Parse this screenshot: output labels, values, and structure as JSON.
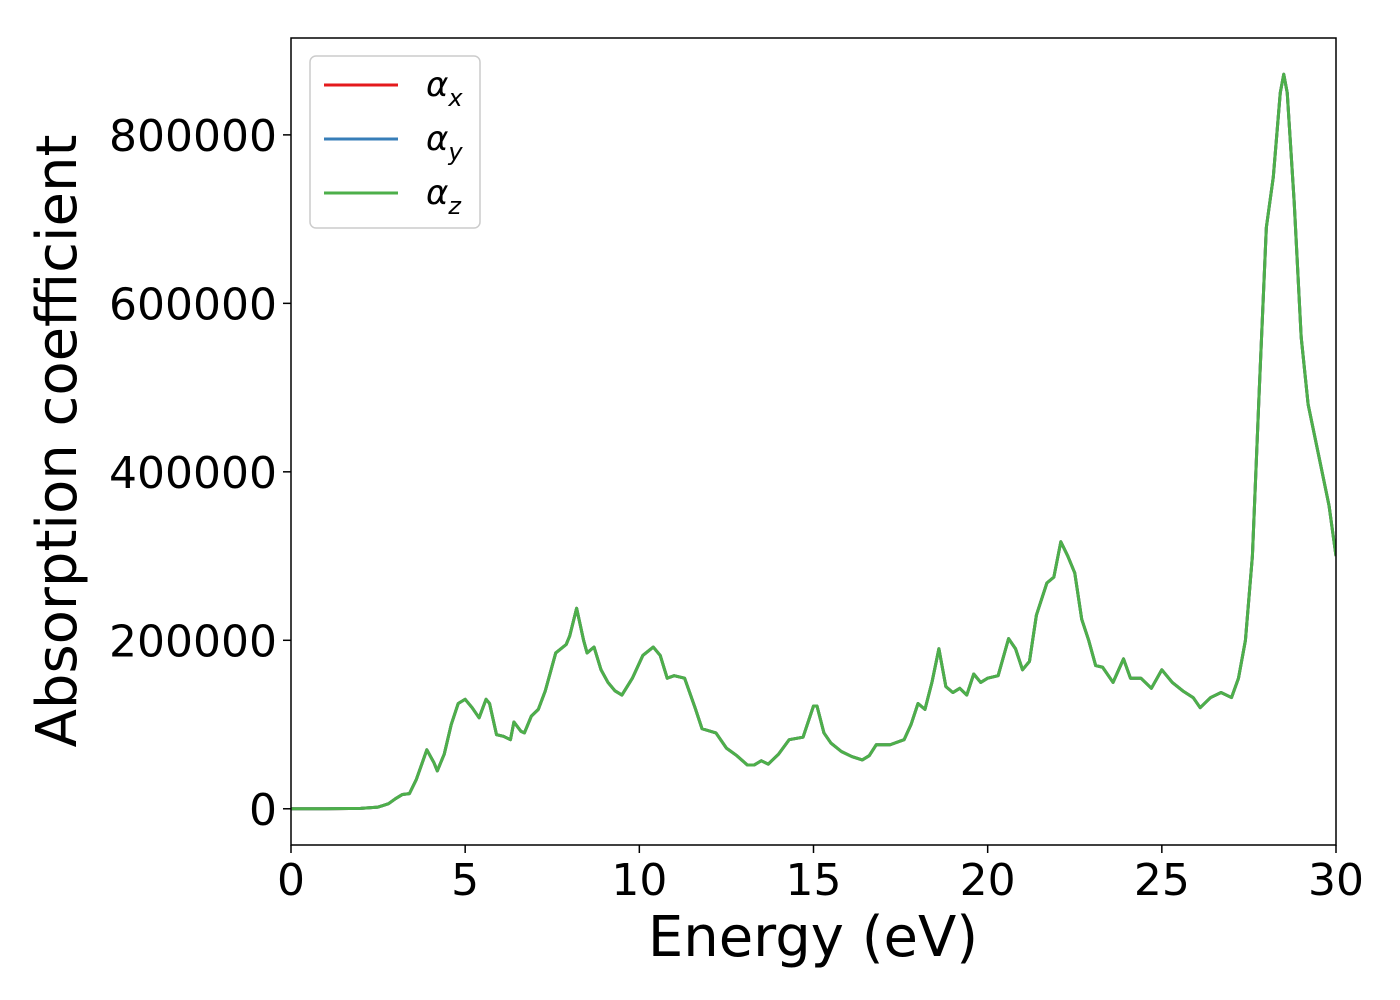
{
  "chart_data": {
    "type": "line",
    "xlabel": "Energy (eV)",
    "ylabel": "Absorption coefficient",
    "xlim": [
      0,
      30
    ],
    "xticks": [
      0,
      5,
      10,
      15,
      20,
      25,
      30
    ],
    "ylim": [
      -43000,
      915000
    ],
    "yticks": [
      0,
      200000,
      400000,
      600000,
      800000
    ],
    "grid": false,
    "legend": "upper left",
    "x": [
      0,
      1,
      2,
      2.5,
      2.8,
      3.0,
      3.2,
      3.4,
      3.6,
      3.9,
      4.1,
      4.2,
      4.4,
      4.6,
      4.8,
      5.0,
      5.2,
      5.4,
      5.6,
      5.7,
      5.9,
      6.1,
      6.3,
      6.4,
      6.6,
      6.7,
      6.9,
      7.1,
      7.3,
      7.6,
      7.9,
      8.0,
      8.2,
      8.4,
      8.5,
      8.7,
      8.9,
      9.1,
      9.3,
      9.5,
      9.8,
      10.1,
      10.4,
      10.6,
      10.8,
      11.0,
      11.3,
      11.6,
      11.8,
      12.2,
      12.5,
      12.8,
      13.1,
      13.3,
      13.5,
      13.7,
      14.0,
      14.3,
      14.7,
      15.0,
      15.1,
      15.3,
      15.5,
      15.8,
      16.1,
      16.4,
      16.6,
      16.8,
      17.2,
      17.6,
      17.8,
      18.0,
      18.2,
      18.4,
      18.6,
      18.8,
      19.0,
      19.2,
      19.4,
      19.6,
      19.8,
      20.0,
      20.3,
      20.6,
      20.8,
      21.0,
      21.2,
      21.4,
      21.7,
      21.9,
      22.1,
      22.3,
      22.5,
      22.7,
      22.9,
      23.1,
      23.3,
      23.6,
      23.9,
      24.1,
      24.4,
      24.7,
      25.0,
      25.3,
      25.6,
      25.9,
      26.1,
      26.4,
      26.7,
      27.0,
      27.2,
      27.4,
      27.6,
      27.8,
      28.0,
      28.2,
      28.4,
      28.5,
      28.6,
      28.8,
      29.0,
      29.2,
      29.5,
      29.8,
      30.0
    ],
    "series": [
      {
        "name": "αx",
        "color": "#e41a1c",
        "values": [
          0,
          0,
          500,
          2000,
          6000,
          12000,
          17000,
          18000,
          35000,
          70000,
          55000,
          45000,
          65000,
          100000,
          125000,
          130000,
          120000,
          108000,
          130000,
          125000,
          88000,
          86000,
          82000,
          103000,
          92000,
          90000,
          110000,
          118000,
          140000,
          185000,
          195000,
          205000,
          238000,
          200000,
          185000,
          192000,
          165000,
          150000,
          140000,
          135000,
          155000,
          182000,
          192000,
          182000,
          155000,
          158000,
          155000,
          120000,
          95000,
          90000,
          72000,
          63000,
          52000,
          52000,
          57000,
          53000,
          65000,
          82000,
          85000,
          122000,
          122000,
          90000,
          78000,
          68000,
          62000,
          58000,
          63000,
          76000,
          76000,
          82000,
          100000,
          125000,
          118000,
          150000,
          190000,
          145000,
          138000,
          143000,
          135000,
          160000,
          150000,
          155000,
          158000,
          202000,
          190000,
          165000,
          175000,
          230000,
          268000,
          275000,
          317000,
          300000,
          280000,
          225000,
          200000,
          170000,
          168000,
          150000,
          178000,
          155000,
          155000,
          143000,
          165000,
          150000,
          140000,
          132000,
          120000,
          132000,
          138000,
          132000,
          155000,
          200000,
          300000,
          500000,
          690000,
          750000,
          850000,
          872000,
          850000,
          720000,
          560000,
          480000,
          420000,
          360000,
          300000
        ]
      },
      {
        "name": "αy",
        "color": "#377eb8",
        "values": [
          0,
          0,
          500,
          2000,
          6000,
          12000,
          17000,
          18000,
          35000,
          70000,
          55000,
          45000,
          65000,
          100000,
          125000,
          130000,
          120000,
          108000,
          130000,
          125000,
          88000,
          86000,
          82000,
          103000,
          92000,
          90000,
          110000,
          118000,
          140000,
          185000,
          195000,
          205000,
          238000,
          200000,
          185000,
          192000,
          165000,
          150000,
          140000,
          135000,
          155000,
          182000,
          192000,
          182000,
          155000,
          158000,
          155000,
          120000,
          95000,
          90000,
          72000,
          63000,
          52000,
          52000,
          57000,
          53000,
          65000,
          82000,
          85000,
          122000,
          122000,
          90000,
          78000,
          68000,
          62000,
          58000,
          63000,
          76000,
          76000,
          82000,
          100000,
          125000,
          118000,
          150000,
          190000,
          145000,
          138000,
          143000,
          135000,
          160000,
          150000,
          155000,
          158000,
          202000,
          190000,
          165000,
          175000,
          230000,
          268000,
          275000,
          317000,
          300000,
          280000,
          225000,
          200000,
          170000,
          168000,
          150000,
          178000,
          155000,
          155000,
          143000,
          165000,
          150000,
          140000,
          132000,
          120000,
          132000,
          138000,
          132000,
          155000,
          200000,
          300000,
          500000,
          690000,
          750000,
          850000,
          872000,
          850000,
          720000,
          560000,
          480000,
          420000,
          360000,
          300000
        ]
      },
      {
        "name": "αz",
        "color": "#4daf4a",
        "values": [
          0,
          0,
          500,
          2000,
          6000,
          12000,
          17000,
          18000,
          35000,
          70000,
          55000,
          45000,
          65000,
          100000,
          125000,
          130000,
          120000,
          108000,
          130000,
          125000,
          88000,
          86000,
          82000,
          103000,
          92000,
          90000,
          110000,
          118000,
          140000,
          185000,
          195000,
          205000,
          238000,
          200000,
          185000,
          192000,
          165000,
          150000,
          140000,
          135000,
          155000,
          182000,
          192000,
          182000,
          155000,
          158000,
          155000,
          120000,
          95000,
          90000,
          72000,
          63000,
          52000,
          52000,
          57000,
          53000,
          65000,
          82000,
          85000,
          122000,
          122000,
          90000,
          78000,
          68000,
          62000,
          58000,
          63000,
          76000,
          76000,
          82000,
          100000,
          125000,
          118000,
          150000,
          190000,
          145000,
          138000,
          143000,
          135000,
          160000,
          150000,
          155000,
          158000,
          202000,
          190000,
          165000,
          175000,
          230000,
          268000,
          275000,
          317000,
          300000,
          280000,
          225000,
          200000,
          170000,
          168000,
          150000,
          178000,
          155000,
          155000,
          143000,
          165000,
          150000,
          140000,
          132000,
          120000,
          132000,
          138000,
          132000,
          155000,
          200000,
          300000,
          500000,
          690000,
          750000,
          850000,
          872000,
          850000,
          720000,
          560000,
          480000,
          420000,
          360000,
          300000
        ]
      }
    ]
  }
}
